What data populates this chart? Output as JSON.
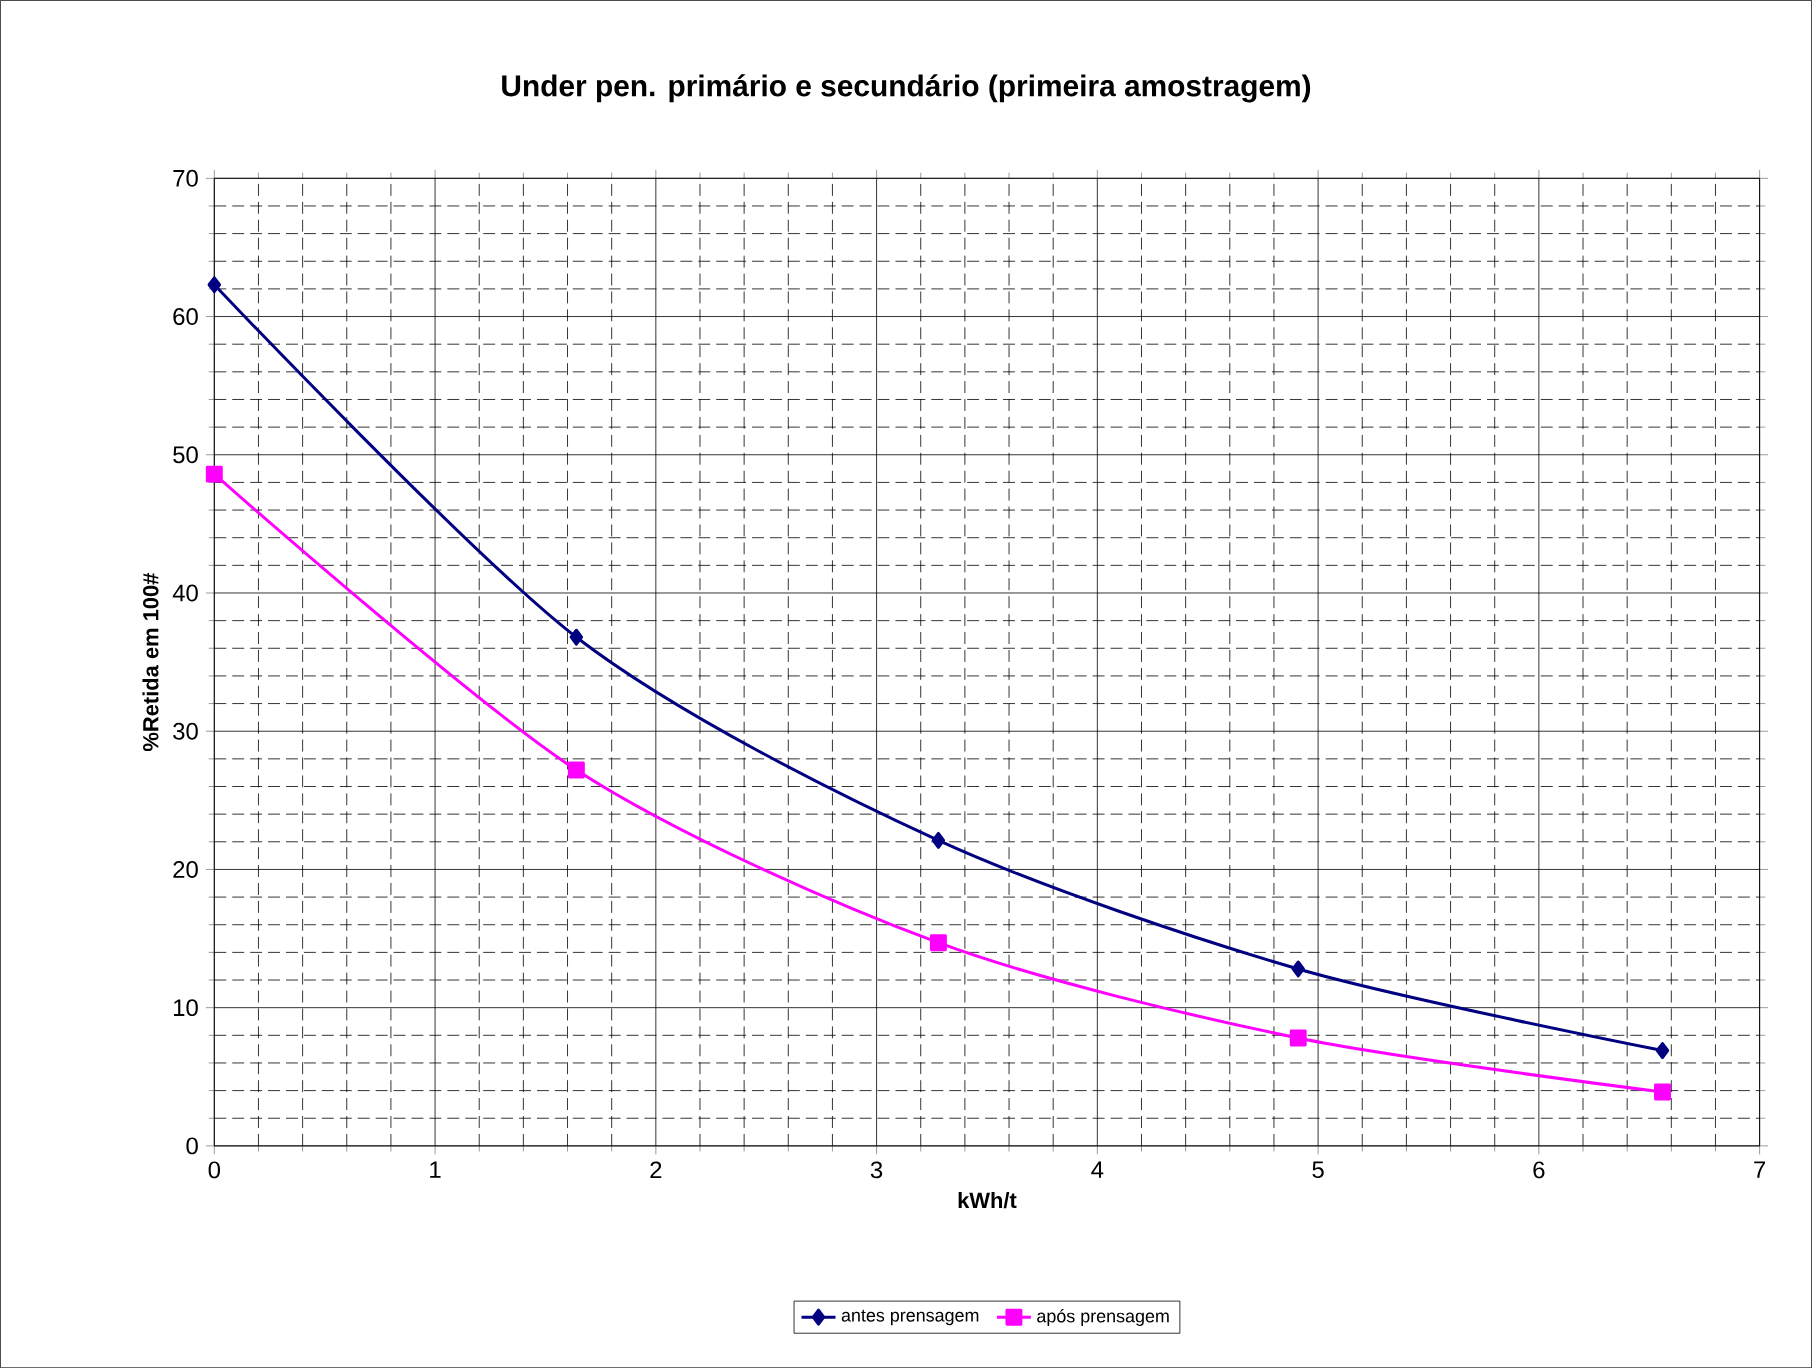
{
  "chart_data": {
    "type": "line",
    "title": "Under pen. primário e secundário (primeira amostragem)",
    "xlabel": "kWh/t",
    "ylabel": "%Retida em 100#",
    "x": [
      0,
      1.64,
      3.28,
      4.91,
      6.56
    ],
    "series": [
      {
        "name": "antes prensagem",
        "color": "#000080",
        "marker": "diamond",
        "values": [
          62.3,
          36.8,
          22.1,
          12.8,
          6.9
        ]
      },
      {
        "name": "após prensagem",
        "color": "#ff00ff",
        "marker": "square",
        "values": [
          48.6,
          27.2,
          14.7,
          7.8,
          3.9
        ]
      }
    ],
    "xlim": [
      0,
      7
    ],
    "ylim": [
      0,
      70
    ],
    "xticks": [
      0,
      1,
      2,
      3,
      4,
      5,
      6,
      7
    ],
    "yticks": [
      0,
      10,
      20,
      30,
      40,
      50,
      60,
      70
    ],
    "grid": true,
    "legend": "bottom",
    "line_style": "solid"
  }
}
